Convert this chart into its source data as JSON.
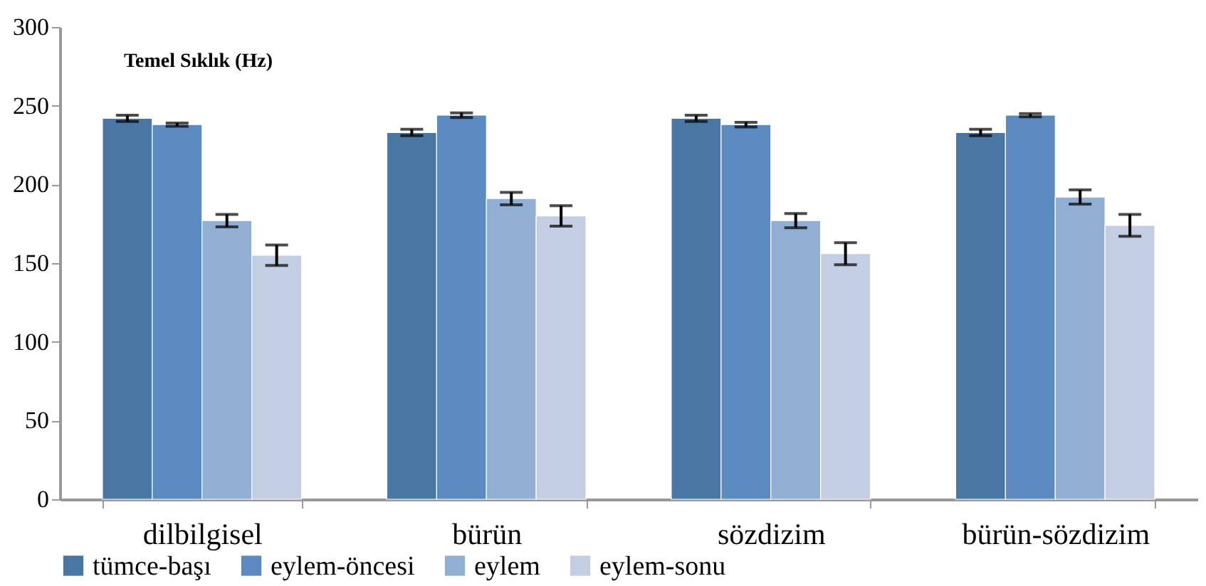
{
  "chart_data": {
    "type": "bar",
    "title": "Temel Sıklık (Hz)",
    "categories": [
      "dilbilgisel",
      "bürün",
      "sözdizim",
      "bürün-sözdizim"
    ],
    "series": [
      {
        "name": "tümce-başı",
        "color": "#4a76a4",
        "values": [
          242,
          233,
          242,
          233
        ],
        "errors": [
          2,
          2,
          2,
          2
        ]
      },
      {
        "name": "eylem-öncesi",
        "color": "#5a8abf",
        "values": [
          238,
          244,
          238,
          244
        ],
        "errors": [
          1,
          1.5,
          1.5,
          1
        ]
      },
      {
        "name": "eylem",
        "color": "#91aed3",
        "values": [
          177,
          191,
          177,
          192
        ],
        "errors": [
          4,
          4,
          4.5,
          4.5
        ]
      },
      {
        "name": "eylem-sonu",
        "color": "#c3cee3",
        "values": [
          155,
          180,
          156,
          174
        ],
        "errors": [
          6.5,
          6.5,
          7,
          7
        ]
      }
    ],
    "ylim": [
      0,
      300
    ],
    "yticks": [
      0,
      50,
      100,
      150,
      200,
      250,
      300
    ],
    "grid": false,
    "legend": "bottom"
  }
}
